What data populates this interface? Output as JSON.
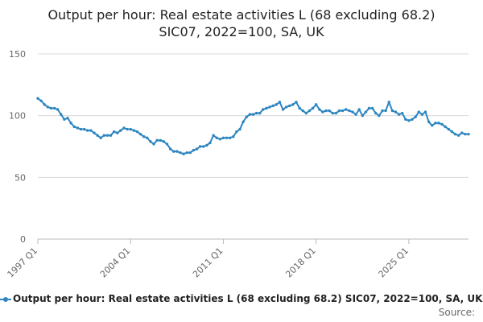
{
  "chart_data": {
    "type": "line",
    "title_lines": [
      "Output per hour: Real estate activities L (68 excluding 68.2)",
      "SIC07, 2022=100, SA, UK"
    ],
    "legend": "Output per hour: Real estate activities L (68 excluding 68.2) SIC07, 2022=100, SA, UK",
    "source": "Source:",
    "ylim": [
      0,
      150
    ],
    "yticks": [
      0,
      50,
      100,
      150
    ],
    "xticks": [
      "1997 Q1",
      "2004 Q1",
      "2011 Q1",
      "2018 Q1",
      "2025 Q1"
    ],
    "grid": true,
    "color": "#2e86c1",
    "series": [
      {
        "values": [
          114,
          112,
          109,
          107,
          106,
          106,
          105,
          101,
          97,
          98,
          94,
          91,
          90,
          89,
          89,
          88,
          88,
          86,
          84,
          82,
          84,
          84,
          84,
          87,
          86,
          88,
          90,
          89,
          89,
          88,
          87,
          85,
          83,
          82,
          79,
          77,
          80,
          80,
          79,
          77,
          73,
          71,
          71,
          70,
          69,
          70,
          70,
          72,
          73,
          75,
          75,
          76,
          78,
          84,
          82,
          81,
          82,
          82,
          82,
          83,
          87,
          89,
          95,
          99,
          101,
          101,
          102,
          102,
          105,
          106,
          107,
          108,
          109,
          111,
          105,
          107,
          108,
          109,
          111,
          106,
          104,
          102,
          104,
          106,
          109,
          105,
          103,
          104,
          104,
          102,
          102,
          104,
          104,
          105,
          104,
          103,
          101,
          105,
          100,
          103,
          106,
          106,
          102,
          100,
          104,
          104,
          111,
          104,
          103,
          101,
          102,
          97,
          96,
          97,
          99,
          103,
          101,
          103,
          95,
          92,
          94,
          94,
          93,
          91,
          89,
          87,
          85,
          84,
          86,
          85,
          85
        ]
      }
    ]
  }
}
